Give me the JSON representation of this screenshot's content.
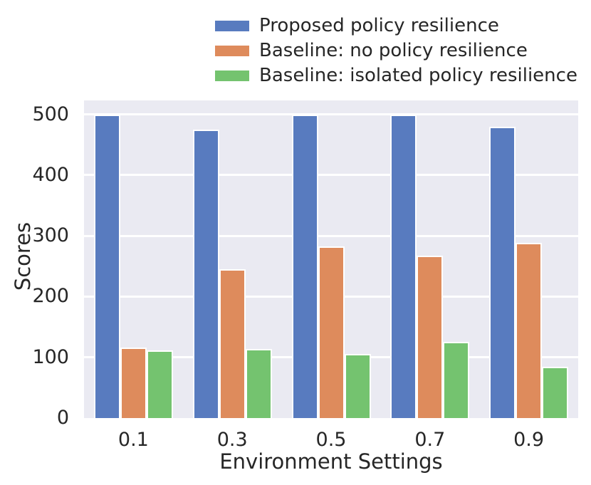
{
  "chart_data": {
    "type": "bar",
    "title": "",
    "xlabel": "Environment Settings",
    "ylabel": "Scores",
    "categories": [
      "0.1",
      "0.3",
      "0.5",
      "0.7",
      "0.9"
    ],
    "series": [
      {
        "name": "Proposed policy resilience",
        "color": "#587BBF",
        "values": [
          500,
          475,
          500,
          500,
          480
        ]
      },
      {
        "name": "Baseline: no policy resilience",
        "color": "#DE8B5C",
        "values": [
          116,
          245,
          283,
          267,
          288
        ]
      },
      {
        "name": "Baseline: isolated policy resilience",
        "color": "#74C36F",
        "values": [
          112,
          114,
          105,
          126,
          85
        ]
      }
    ],
    "ylim": [
      0,
      523
    ],
    "yticks": [
      0,
      100,
      200,
      300,
      400,
      500
    ],
    "grid": true,
    "legend_position": "top",
    "colors": {
      "plot_background": "#EAEAF2",
      "gridline": "#FFFFFF",
      "bar_edge": "#FFFFFF",
      "text": "#262626",
      "figure_background": "#FFFFFF"
    }
  }
}
